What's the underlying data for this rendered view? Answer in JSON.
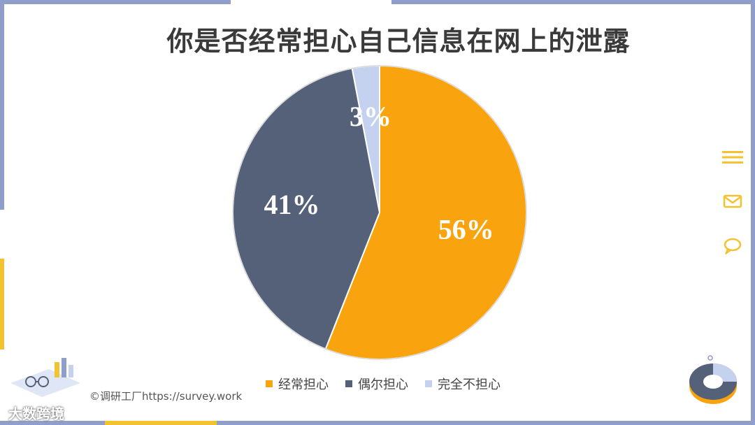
{
  "title": "你是否经常担心自己信息在网上的泄露",
  "chart_data": {
    "type": "pie",
    "title": "你是否经常担心自己信息在网上的泄露",
    "categories": [
      "经常担心",
      "偶尔担心",
      "完全不担心"
    ],
    "values": [
      56,
      41,
      3
    ],
    "labels": [
      "56%",
      "41%",
      "3%"
    ],
    "colors": [
      "#f9a40e",
      "#556079",
      "#c4d1ef"
    ],
    "legend": "bottom"
  },
  "credit": "©调研工厂https://survey.work",
  "watermark": "大数跨境",
  "side_icons": [
    "menu-icon",
    "mail-icon",
    "chat-icon"
  ]
}
